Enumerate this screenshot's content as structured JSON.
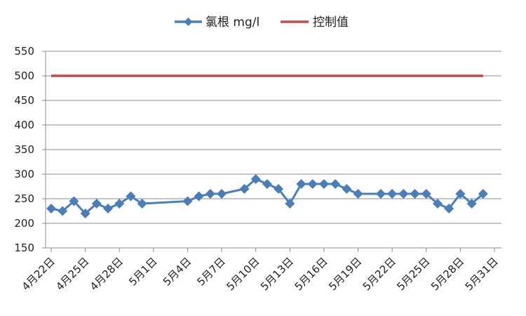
{
  "chart_data": {
    "type": "line",
    "x_ticks": [
      "4月22日",
      "4月25日",
      "4月28日",
      "5月1日",
      "5月4日",
      "5月7日",
      "5月10日",
      "5月13日",
      "5月16日",
      "5月19日",
      "5月22日",
      "5月25日",
      "5月28日",
      "5月31日"
    ],
    "y_ticks": [
      "150",
      "200",
      "250",
      "300",
      "350",
      "400",
      "450",
      "500",
      "550"
    ],
    "ylim": [
      150,
      550
    ],
    "xlim_days": [
      0,
      39
    ],
    "grid": "horizontal",
    "legend_position": "top-center",
    "series": [
      {
        "name": "氯根 mg/l",
        "color": "#4a7ebb",
        "marker": "diamond",
        "points": [
          {
            "date": "4月22日",
            "y": 230
          },
          {
            "date": "4月23日",
            "y": 225
          },
          {
            "date": "4月24日",
            "y": 245
          },
          {
            "date": "4月25日",
            "y": 220
          },
          {
            "date": "4月26日",
            "y": 240
          },
          {
            "date": "4月27日",
            "y": 230
          },
          {
            "date": "4月28日",
            "y": 240
          },
          {
            "date": "4月29日",
            "y": 255
          },
          {
            "date": "4月30日",
            "y": 240
          },
          {
            "date": "5月4日",
            "y": 245
          },
          {
            "date": "5月5日",
            "y": 255
          },
          {
            "date": "5月6日",
            "y": 260
          },
          {
            "date": "5月7日",
            "y": 260
          },
          {
            "date": "5月9日",
            "y": 270
          },
          {
            "date": "5月10日",
            "y": 290
          },
          {
            "date": "5月11日",
            "y": 280
          },
          {
            "date": "5月12日",
            "y": 270
          },
          {
            "date": "5月13日",
            "y": 240
          },
          {
            "date": "5月14日",
            "y": 280
          },
          {
            "date": "5月15日",
            "y": 280
          },
          {
            "date": "5月16日",
            "y": 280
          },
          {
            "date": "5月17日",
            "y": 280
          },
          {
            "date": "5月18日",
            "y": 270
          },
          {
            "date": "5月19日",
            "y": 260
          },
          {
            "date": "5月21日",
            "y": 260
          },
          {
            "date": "5月22日",
            "y": 260
          },
          {
            "date": "5月23日",
            "y": 260
          },
          {
            "date": "5月24日",
            "y": 260
          },
          {
            "date": "5月25日",
            "y": 260
          },
          {
            "date": "5月26日",
            "y": 240
          },
          {
            "date": "5月27日",
            "y": 230
          },
          {
            "date": "5月28日",
            "y": 260
          },
          {
            "date": "5月29日",
            "y": 240
          },
          {
            "date": "5月30日",
            "y": 260
          }
        ]
      },
      {
        "name": "控制值",
        "color": "#be4b48",
        "marker": "none",
        "points": [
          {
            "date": "4月22日",
            "y": 500
          },
          {
            "date": "5月30日",
            "y": 500
          }
        ]
      }
    ]
  }
}
